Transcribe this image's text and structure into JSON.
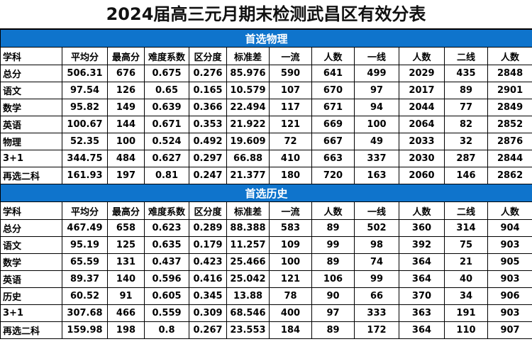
{
  "title": "2024届高三元月期末检测武昌区有效分表",
  "columns": [
    "学科",
    "平均分",
    "最高分",
    "难度系数",
    "区分度",
    "标准差",
    "一流",
    "人数",
    "一线",
    "人数",
    "二线",
    "人数"
  ],
  "sections": [
    {
      "title": "首选物理",
      "rows": [
        [
          "总分",
          "506.31",
          "676",
          "0.675",
          "0.276",
          "85.976",
          "590",
          "641",
          "499",
          "2029",
          "435",
          "2848"
        ],
        [
          "语文",
          "97.54",
          "126",
          "0.65",
          "0.165",
          "10.579",
          "107",
          "670",
          "97",
          "2017",
          "89",
          "2901"
        ],
        [
          "数学",
          "95.82",
          "149",
          "0.639",
          "0.366",
          "22.494",
          "117",
          "671",
          "94",
          "2044",
          "77",
          "2849"
        ],
        [
          "英语",
          "100.67",
          "144",
          "0.671",
          "0.353",
          "21.922",
          "121",
          "669",
          "100",
          "2064",
          "82",
          "2852"
        ],
        [
          "物理",
          "52.35",
          "100",
          "0.524",
          "0.492",
          "19.609",
          "72",
          "667",
          "49",
          "2033",
          "32",
          "2876"
        ],
        [
          "3+1",
          "344.75",
          "484",
          "0.627",
          "0.297",
          "66.88",
          "410",
          "663",
          "337",
          "2030",
          "287",
          "2844"
        ],
        [
          "再选二科",
          "161.93",
          "197",
          "0.81",
          "0.247",
          "21.377",
          "180",
          "720",
          "163",
          "2060",
          "146",
          "2862"
        ]
      ]
    },
    {
      "title": "首选历史",
      "rows": [
        [
          "总分",
          "467.49",
          "658",
          "0.623",
          "0.289",
          "88.388",
          "583",
          "89",
          "502",
          "360",
          "314",
          "904"
        ],
        [
          "语文",
          "95.19",
          "125",
          "0.635",
          "0.179",
          "11.257",
          "109",
          "99",
          "98",
          "392",
          "75",
          "903"
        ],
        [
          "数学",
          "65.59",
          "131",
          "0.437",
          "0.423",
          "25.466",
          "100",
          "89",
          "74",
          "364",
          "21",
          "905"
        ],
        [
          "英语",
          "89.37",
          "140",
          "0.596",
          "0.416",
          "25.042",
          "121",
          "106",
          "99",
          "364",
          "40",
          "903"
        ],
        [
          "历史",
          "60.52",
          "91",
          "0.605",
          "0.345",
          "13.88",
          "78",
          "90",
          "66",
          "370",
          "34",
          "906"
        ],
        [
          "3+1",
          "307.68",
          "466",
          "0.559",
          "0.309",
          "68.546",
          "400",
          "97",
          "333",
          "363",
          "191",
          "903"
        ],
        [
          "再选二科",
          "159.98",
          "198",
          "0.8",
          "0.267",
          "23.553",
          "184",
          "89",
          "172",
          "364",
          "110",
          "907"
        ]
      ]
    }
  ],
  "colors": {
    "section_bar": "#0f74cc",
    "section_text": "#ffffff",
    "grid_line": "#000000"
  }
}
